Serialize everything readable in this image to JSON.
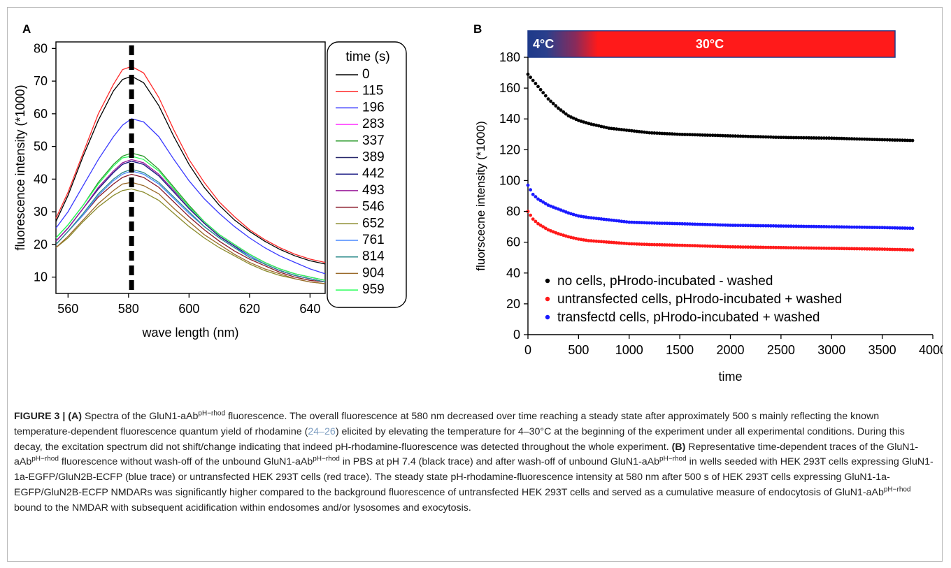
{
  "panels": {
    "a": {
      "label": "A",
      "legend_title": "time (s)",
      "series_colors": [
        "#000000",
        "#ff2a2a",
        "#3a3aff",
        "#ff3aff",
        "#2a9a2a",
        "#28286a",
        "#222288",
        "#9a1a9a",
        "#8a1a2a",
        "#8a8a2a",
        "#4a8aff",
        "#2a8a8a",
        "#9a6a2a",
        "#2aff5a"
      ]
    },
    "b": {
      "label": "B",
      "temp_low": "4°C",
      "temp_high": "30°C",
      "legend": [
        {
          "marker": "•",
          "text": "no cells, pHrodo-incubated - washed",
          "color": "#000000"
        },
        {
          "marker": "•",
          "text": "untransfected cells, pHrodo-incubated + washed",
          "color": "#ff1a1a"
        },
        {
          "marker": "•",
          "text": "transfectd cells, pHrodo-incubated + washed",
          "color": "#1a1aff"
        }
      ]
    }
  },
  "chart_data": [
    {
      "type": "line",
      "title": "",
      "xlabel": "wave length (nm)",
      "ylabel": "fluorescence intensity (*1000)",
      "xlim": [
        556,
        645
      ],
      "ylim": [
        5,
        82
      ],
      "xticks": [
        "560",
        "580",
        "600",
        "620",
        "640"
      ],
      "yticks": [
        "10",
        "20",
        "30",
        "40",
        "50",
        "60",
        "70",
        "80"
      ],
      "annotation": {
        "type": "dashed-vertical-line",
        "x": 581
      },
      "x": [
        556,
        560,
        565,
        570,
        575,
        578,
        581,
        585,
        590,
        595,
        600,
        605,
        610,
        615,
        620,
        625,
        630,
        635,
        640,
        645
      ],
      "series": [
        {
          "name": "0",
          "values": [
            27,
            35,
            47,
            58,
            67,
            70.5,
            71.5,
            69.5,
            62.5,
            53,
            44.5,
            37.5,
            32,
            27.5,
            24,
            21,
            18.5,
            16.5,
            15,
            14
          ]
        },
        {
          "name": "115",
          "values": [
            28,
            36,
            48,
            60,
            69,
            73.5,
            74.5,
            72.5,
            65,
            55,
            46,
            39,
            33,
            28.5,
            24.5,
            21.5,
            19,
            17,
            15.5,
            14.5
          ]
        },
        {
          "name": "196",
          "values": [
            25,
            30,
            38,
            46,
            53,
            56.5,
            58.5,
            57.5,
            53,
            46,
            39.5,
            34,
            29.5,
            25.5,
            22,
            19,
            16.5,
            14.5,
            12.5,
            11
          ]
        },
        {
          "name": "283",
          "values": [
            21,
            25,
            31,
            37,
            42,
            44.5,
            45.5,
            44.5,
            41,
            36,
            31,
            26.5,
            22.5,
            19.5,
            16.5,
            14,
            12,
            10.5,
            9.5,
            8.5
          ]
        },
        {
          "name": "337",
          "values": [
            22,
            26,
            32,
            39,
            44.5,
            47,
            48,
            47,
            43,
            37.5,
            32,
            27,
            23,
            20,
            17,
            14.5,
            12.5,
            11,
            10,
            9
          ]
        },
        {
          "name": "389",
          "values": [
            21,
            25,
            31,
            37,
            42,
            44.5,
            45.5,
            44.5,
            41,
            36,
            31,
            26.5,
            22.5,
            19.5,
            16.5,
            14,
            12,
            10.5,
            9.5,
            8.5
          ]
        },
        {
          "name": "442",
          "values": [
            21,
            25,
            31,
            37,
            42,
            44.5,
            45.5,
            44.5,
            41,
            36,
            31,
            26.5,
            22.5,
            19.5,
            16.5,
            14,
            12,
            10.5,
            9.5,
            8.5
          ]
        },
        {
          "name": "493",
          "values": [
            21,
            25,
            31,
            37.5,
            42.5,
            45,
            46,
            45,
            41.5,
            36.5,
            31.5,
            27,
            23,
            20,
            17,
            14.5,
            12.5,
            11,
            10,
            9
          ]
        },
        {
          "name": "546",
          "values": [
            20,
            24,
            29,
            34.5,
            38.5,
            40.5,
            41.5,
            40.5,
            37.5,
            33,
            28.5,
            24.5,
            21,
            18,
            15.5,
            13.5,
            11.5,
            10,
            9,
            8.5
          ]
        },
        {
          "name": "652",
          "values": [
            19,
            22,
            27,
            31.5,
            35,
            36.5,
            37,
            36,
            33.5,
            29.5,
            25.5,
            22,
            19,
            16.5,
            14,
            12,
            10.5,
            9.5,
            8.5,
            8
          ]
        },
        {
          "name": "761",
          "values": [
            20,
            24,
            29,
            35,
            39.5,
            41.5,
            42.5,
            41.5,
            38.5,
            34,
            29.5,
            25.5,
            22,
            19,
            16.5,
            14,
            12,
            10.5,
            9.5,
            8.5
          ]
        },
        {
          "name": "814",
          "values": [
            20,
            24,
            29.5,
            35.5,
            40,
            42,
            43,
            42,
            39,
            34.5,
            30,
            25.5,
            22,
            19,
            16,
            14,
            12,
            10.5,
            9.5,
            8.5
          ]
        },
        {
          "name": "904",
          "values": [
            19,
            22.5,
            27.5,
            32.5,
            36.5,
            38.5,
            39,
            38,
            35.5,
            31,
            27,
            23,
            20,
            17,
            14.5,
            12.5,
            11,
            9.5,
            8.5,
            8
          ]
        },
        {
          "name": "959",
          "values": [
            22,
            26,
            32,
            38.5,
            44,
            46.5,
            47,
            46,
            42.5,
            37,
            31.5,
            27,
            23,
            20,
            17,
            14.5,
            12.5,
            11,
            10,
            9
          ]
        }
      ]
    },
    {
      "type": "scatter",
      "title": "",
      "xlabel": "time",
      "ylabel": "fluorscecne intensity (*1000)",
      "xlim": [
        0,
        4000
      ],
      "ylim": [
        0,
        180
      ],
      "xticks": [
        "0",
        "500",
        "1000",
        "1500",
        "2000",
        "2500",
        "3000",
        "3500",
        "4000"
      ],
      "yticks": [
        "0",
        "20",
        "40",
        "60",
        "80",
        "100",
        "120",
        "140",
        "160",
        "180"
      ],
      "x": [
        0,
        50,
        100,
        150,
        200,
        300,
        400,
        500,
        600,
        800,
        1000,
        1200,
        1500,
        2000,
        2500,
        3000,
        3500,
        3800
      ],
      "series": [
        {
          "name": "no cells, pHrodo-incubated - washed",
          "values": [
            169,
            165,
            161,
            157,
            153,
            147,
            142,
            139,
            137,
            134,
            132.5,
            131,
            130,
            129,
            128,
            127.5,
            126.5,
            126
          ]
        },
        {
          "name": "untransfected cells, pHrodo-incubated + washed",
          "values": [
            80,
            75,
            72,
            70,
            68,
            65.5,
            63.5,
            62,
            61,
            60,
            59,
            58.5,
            58,
            57,
            56.5,
            56,
            55.5,
            55
          ]
        },
        {
          "name": "transfectd cells, pHrodo-incubated + washed",
          "values": [
            97,
            91,
            88,
            86,
            84,
            81.5,
            79,
            77,
            76,
            74.5,
            73,
            72.5,
            72,
            71,
            70.5,
            70,
            69.5,
            69
          ]
        }
      ]
    }
  ],
  "caption": {
    "label": "FIGURE 3 |",
    "segments": [
      {
        "style": "bold",
        "text": "(A)"
      },
      {
        "style": "plain",
        "text": "Spectra of the GluN1-aAb"
      },
      {
        "style": "sup",
        "text": "pH−rhod"
      },
      {
        "style": "plain",
        "text": "fluorescence. The overall fluorescence at 580 nm decreased over time reaching a steady state after approximately 500 s mainly reflecting the known temperature-dependent fluorescence quantum yield of rhodamine ("
      },
      {
        "style": "cite",
        "text": "24–26"
      },
      {
        "style": "plain",
        "text": ") elicited by elevating the temperature for 4–30°C at the beginning of the experiment under all experimental conditions. During this decay, the excitation spectrum did not shift/change indicating that indeed pH-rhodamine-fluorescence was detected throughout the whole experiment."
      },
      {
        "style": "bold",
        "text": "(B)"
      },
      {
        "style": "plain",
        "text": "Representative time-dependent traces of the GluN1-aAb"
      },
      {
        "style": "sup",
        "text": "pH−rhod"
      },
      {
        "style": "plain",
        "text": "fluorescence without wash-off of the unbound GluN1-aAb"
      },
      {
        "style": "sup",
        "text": "pH−rhod"
      },
      {
        "style": "plain",
        "text": "in PBS at pH 7.4 (black trace) and after wash-off of unbound GluN1-aAb"
      },
      {
        "style": "sup",
        "text": "pH−rhod"
      },
      {
        "style": "plain",
        "text": "in wells seeded with HEK 293T cells expressing GluN1-1a-EGFP/GluN2B-ECFP (blue trace) or untransfected HEK 293T cells (red trace). The steady state pH-rhodamine-fluorescence intensity at 580 nm after 500 s of HEK 293T cells expressing GluN1-1a-EGFP/GluN2B-ECFP NMDARs was significantly higher compared to the background fluorescence of untransfected HEK 293T cells and served as a cumulative measure of endocytosis of GluN1-aAb"
      },
      {
        "style": "sup",
        "text": "pH−rhod"
      },
      {
        "style": "plain",
        "text": "bound to the NMDAR with subsequent acidification within endosomes and/or lysosomes and exocytosis."
      }
    ]
  }
}
